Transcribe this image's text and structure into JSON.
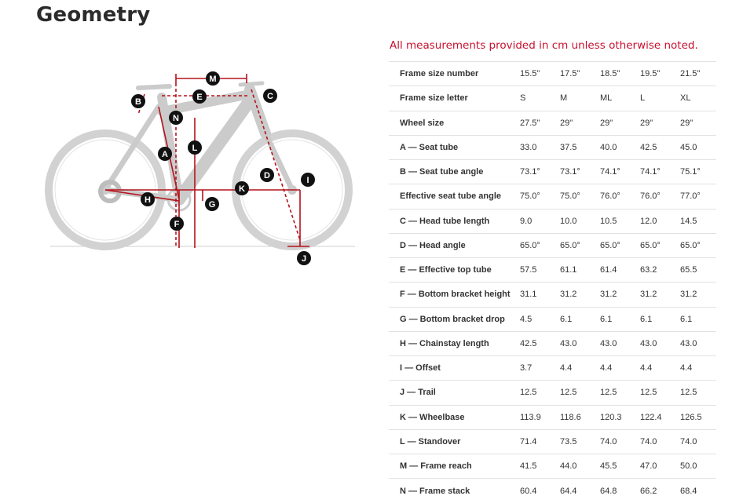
{
  "title": "Geometry",
  "note": "All measurements provided in cm unless otherwise noted.",
  "diagram": {
    "markers": [
      "M",
      "E",
      "C",
      "B",
      "N",
      "L",
      "A",
      "D",
      "I",
      "K",
      "H",
      "G",
      "F",
      "J"
    ]
  },
  "rows": [
    {
      "label": "Frame size number",
      "values": [
        "15.5\"",
        "17.5\"",
        "18.5\"",
        "19.5\"",
        "21.5\""
      ]
    },
    {
      "label": "Frame size letter",
      "values": [
        "S",
        "M",
        "ML",
        "L",
        "XL"
      ]
    },
    {
      "label": "Wheel size",
      "values": [
        "27.5\"",
        "29\"",
        "29\"",
        "29\"",
        "29\""
      ]
    },
    {
      "label": "A — Seat tube",
      "values": [
        "33.0",
        "37.5",
        "40.0",
        "42.5",
        "45.0"
      ]
    },
    {
      "label": "B — Seat tube angle",
      "values": [
        "73.1°",
        "73.1°",
        "74.1°",
        "74.1°",
        "75.1°"
      ]
    },
    {
      "label": "Effective seat tube angle",
      "values": [
        "75.0°",
        "75.0°",
        "76.0°",
        "76.0°",
        "77.0°"
      ]
    },
    {
      "label": "C — Head tube length",
      "values": [
        "9.0",
        "10.0",
        "10.5",
        "12.0",
        "14.5"
      ]
    },
    {
      "label": "D — Head angle",
      "values": [
        "65.0°",
        "65.0°",
        "65.0°",
        "65.0°",
        "65.0°"
      ]
    },
    {
      "label": "E — Effective top tube",
      "values": [
        "57.5",
        "61.1",
        "61.4",
        "63.2",
        "65.5"
      ]
    },
    {
      "label": "F — Bottom bracket height",
      "values": [
        "31.1",
        "31.2",
        "31.2",
        "31.2",
        "31.2"
      ]
    },
    {
      "label": "G — Bottom bracket drop",
      "values": [
        "4.5",
        "6.1",
        "6.1",
        "6.1",
        "6.1"
      ]
    },
    {
      "label": "H — Chainstay length",
      "values": [
        "42.5",
        "43.0",
        "43.0",
        "43.0",
        "43.0"
      ]
    },
    {
      "label": "I — Offset",
      "values": [
        "3.7",
        "4.4",
        "4.4",
        "4.4",
        "4.4"
      ]
    },
    {
      "label": "J — Trail",
      "values": [
        "12.5",
        "12.5",
        "12.5",
        "12.5",
        "12.5"
      ]
    },
    {
      "label": "K — Wheelbase",
      "values": [
        "113.9",
        "118.6",
        "120.3",
        "122.4",
        "126.5"
      ]
    },
    {
      "label": "L — Standover",
      "values": [
        "71.4",
        "73.5",
        "74.0",
        "74.0",
        "74.0"
      ]
    },
    {
      "label": "M — Frame reach",
      "values": [
        "41.5",
        "44.0",
        "45.5",
        "47.0",
        "50.0"
      ]
    },
    {
      "label": "N — Frame stack",
      "values": [
        "60.4",
        "64.4",
        "64.8",
        "66.2",
        "68.4"
      ]
    }
  ]
}
